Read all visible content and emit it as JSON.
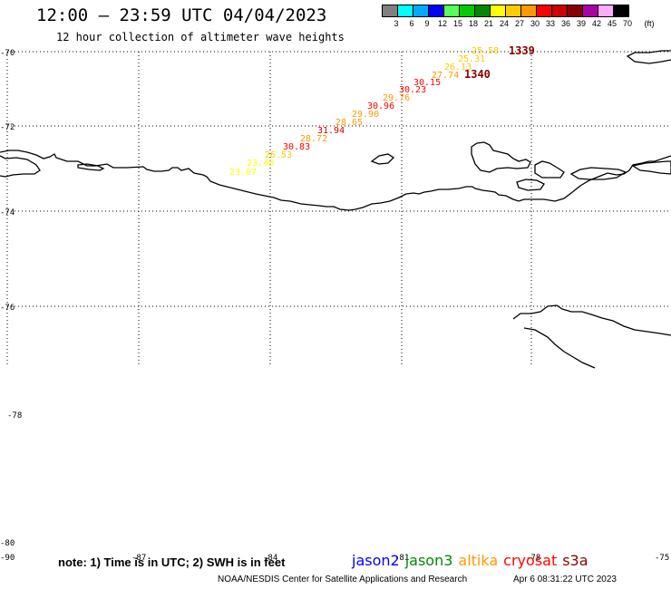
{
  "header": {
    "title": "12:00 – 23:59 UTC 04/04/2023",
    "subtitle": "12 hour collection of altimeter wave heights"
  },
  "colorbar": {
    "unit_label": "(ft)",
    "entries": [
      {
        "label": "3",
        "color": "#808080"
      },
      {
        "label": "6",
        "color": "#00ffff"
      },
      {
        "label": "9",
        "color": "#00aaff"
      },
      {
        "label": "12",
        "color": "#0000ff"
      },
      {
        "label": "15",
        "color": "#55ff55"
      },
      {
        "label": "18",
        "color": "#00cc00"
      },
      {
        "label": "21",
        "color": "#008800"
      },
      {
        "label": "24",
        "color": "#ffff00"
      },
      {
        "label": "27",
        "color": "#ffcc00"
      },
      {
        "label": "30",
        "color": "#ff9900"
      },
      {
        "label": "33",
        "color": "#ff0000"
      },
      {
        "label": "36",
        "color": "#cc0000"
      },
      {
        "label": "39",
        "color": "#880000"
      },
      {
        "label": "42",
        "color": "#aa00aa"
      },
      {
        "label": "45",
        "color": "#ffaaff"
      },
      {
        "label": "70",
        "color": "#000000"
      }
    ]
  },
  "axes": {
    "lat_labels": [
      "-70",
      "-72",
      "-74",
      "-76",
      "-78",
      "-80"
    ],
    "lon_labels": [
      "-90",
      "-87",
      "-84",
      "-81",
      "-78",
      "-75"
    ]
  },
  "wave_readings": [
    {
      "value": "25.58",
      "color": "#ffcc00"
    },
    {
      "value": "25.31",
      "color": "#ffcc00"
    },
    {
      "value": "26.13",
      "color": "#ffcc00"
    },
    {
      "value": "27.74",
      "color": "#ff9900"
    },
    {
      "value": "30.15",
      "color": "#ff0000"
    },
    {
      "value": "30.23",
      "color": "#ff0000"
    },
    {
      "value": "29.76",
      "color": "#ff9900"
    },
    {
      "value": "30.96",
      "color": "#ff0000"
    },
    {
      "value": "29.90",
      "color": "#ff9900"
    },
    {
      "value": "28.65",
      "color": "#ff9900"
    },
    {
      "value": "31.94",
      "color": "#cc0000"
    },
    {
      "value": "28.72",
      "color": "#ff9900"
    },
    {
      "value": "30.83",
      "color": "#ff0000"
    },
    {
      "value": "26.53",
      "color": "#ffcc00"
    },
    {
      "value": "23.48",
      "color": "#ffff00"
    },
    {
      "value": "23.07",
      "color": "#ffff00"
    }
  ],
  "time_labels": [
    "1339",
    "1340"
  ],
  "satellites": [
    {
      "name": "jason2",
      "color": "#0000ff"
    },
    {
      "name": "jason3",
      "color": "#008800"
    },
    {
      "name": "altika",
      "color": "#ff9900"
    },
    {
      "name": "cryosat",
      "color": "#ff0000"
    },
    {
      "name": "s3a",
      "color": "#880000"
    }
  ],
  "note": "note: 1) Time is in UTC; 2) SWH is in feet",
  "footer": {
    "credit": "NOAA/NESDIS Center for Satellite Applications and Research",
    "timestamp": "Apr  6 08:31:22 UTC 2023"
  }
}
